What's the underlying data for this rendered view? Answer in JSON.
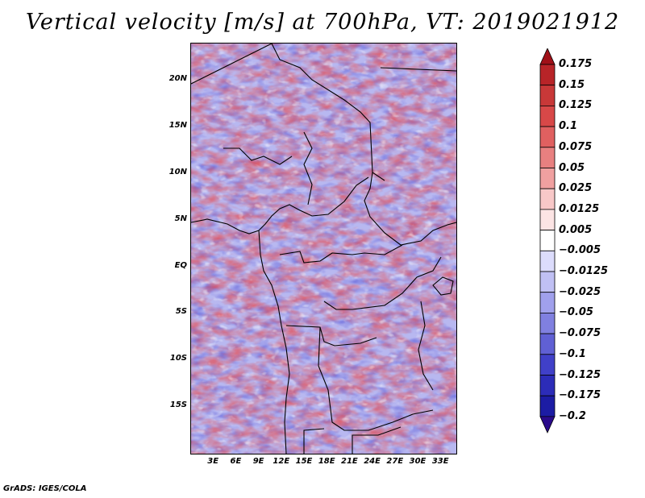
{
  "title": "Vertical velocity [m/s] at 700hPa, VT: 2019021912",
  "footer": "GrADS: IGES/COLA",
  "map": {
    "lat_labels": [
      "20N",
      "15N",
      "10N",
      "5N",
      "EQ",
      "5S",
      "10S",
      "15S"
    ],
    "lat_values": [
      20,
      15,
      10,
      5,
      0,
      -5,
      -10,
      -15
    ],
    "lon_labels": [
      "3E",
      "6E",
      "9E",
      "12E",
      "15E",
      "18E",
      "21E",
      "24E",
      "27E",
      "30E",
      "33E"
    ],
    "lon_values": [
      3,
      6,
      9,
      12,
      15,
      18,
      21,
      24,
      27,
      30,
      33
    ],
    "lat_range": [
      -20,
      24
    ],
    "lon_range": [
      0,
      35
    ]
  },
  "colorbar": {
    "labels": [
      "0.175",
      "0.15",
      "0.125",
      "0.1",
      "0.075",
      "0.05",
      "0.025",
      "0.0125",
      "0.005",
      "−0.005",
      "−0.0125",
      "−0.025",
      "−0.05",
      "−0.075",
      "−0.1",
      "−0.125",
      "−0.175",
      "−0.2"
    ],
    "colors": [
      "#a01018",
      "#b82428",
      "#c83838",
      "#d84848",
      "#e06060",
      "#e88080",
      "#f0a0a0",
      "#f8c8c8",
      "#fce4e4",
      "#ffffff",
      "#dcdcfc",
      "#c0c0f4",
      "#a0a0ec",
      "#8080e0",
      "#6060d4",
      "#4040c8",
      "#2c2cb8",
      "#1c1ca4",
      "#2a0a8c"
    ]
  }
}
